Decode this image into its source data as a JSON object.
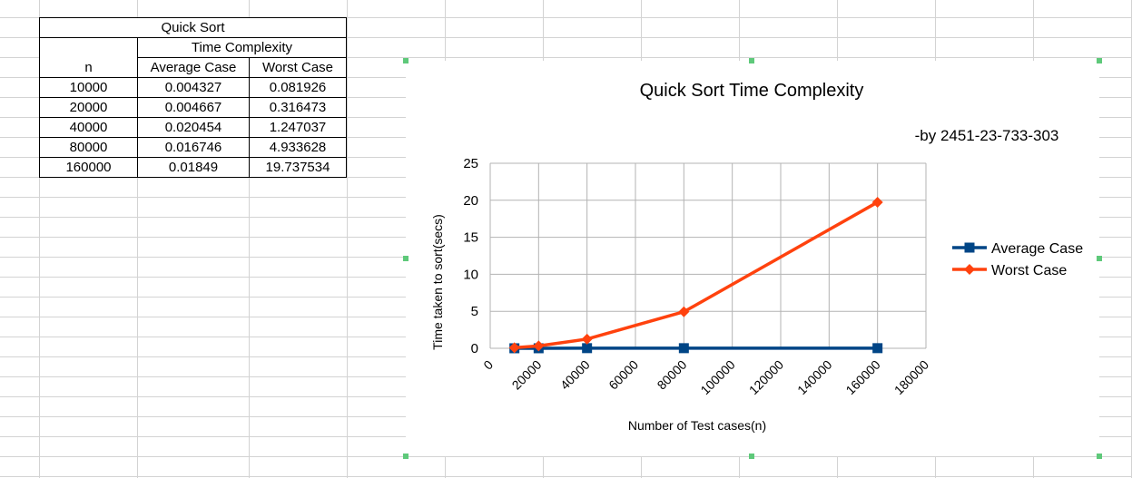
{
  "table": {
    "title": "Quick Sort",
    "group_header": "Time Complexity",
    "col_n": "n",
    "col_avg": "Average Case",
    "col_worst": "Worst Case",
    "rows": [
      {
        "n": "10000",
        "avg": "0.004327",
        "worst": "0.081926"
      },
      {
        "n": "20000",
        "avg": "0.004667",
        "worst": "0.316473"
      },
      {
        "n": "40000",
        "avg": "0.020454",
        "worst": "1.247037"
      },
      {
        "n": "80000",
        "avg": "0.016746",
        "worst": "4.933628"
      },
      {
        "n": "160000",
        "avg": "0.01849",
        "worst": "19.737534"
      }
    ]
  },
  "chart_data": {
    "type": "line",
    "title": "Quick Sort Time Complexity",
    "subtitle": "-by 2451-23-733-303",
    "xlabel": "Number of Test cases(n)",
    "ylabel": "Time taken to sort(secs)",
    "xlim": [
      0,
      180000
    ],
    "ylim": [
      0,
      25
    ],
    "xticks": [
      0,
      20000,
      40000,
      60000,
      80000,
      100000,
      120000,
      140000,
      160000,
      180000
    ],
    "yticks": [
      0,
      5,
      10,
      15,
      20,
      25
    ],
    "x": [
      10000,
      20000,
      40000,
      80000,
      160000
    ],
    "grid": true,
    "legend": "right",
    "series": [
      {
        "name": "Average Case",
        "values": [
          0.004327,
          0.004667,
          0.020454,
          0.016746,
          0.01849
        ],
        "color": "#004586",
        "marker": "square"
      },
      {
        "name": "Worst Case",
        "values": [
          0.081926,
          0.316473,
          1.247037,
          4.933628,
          19.737534
        ],
        "color": "#ff420e",
        "marker": "diamond"
      }
    ]
  }
}
